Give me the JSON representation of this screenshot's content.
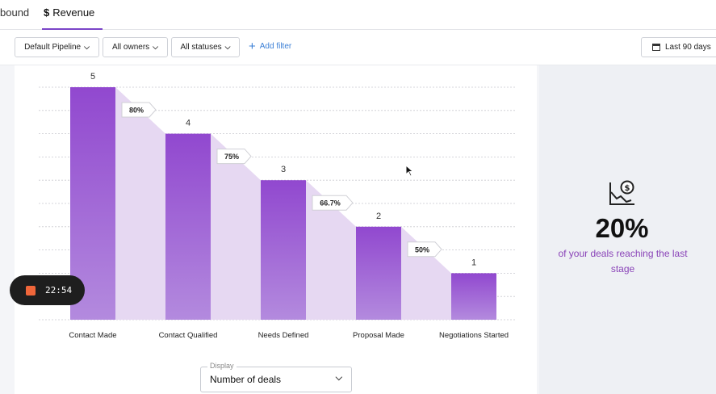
{
  "tabs": {
    "inbound": "bound",
    "revenue": "Revenue",
    "revenue_symbol": "$"
  },
  "filters": {
    "pipeline": "Default Pipeline",
    "owners": "All owners",
    "statuses": "All statuses",
    "add_filter": "Add filter",
    "date_range": "Last 90 days"
  },
  "chart_data": {
    "type": "bar",
    "categories": [
      "Contact Made",
      "Contact Qualified",
      "Needs Defined",
      "Proposal Made",
      "Negotiations Started"
    ],
    "values": [
      5,
      4,
      3,
      2,
      1
    ],
    "conversion_labels": [
      "80%",
      "75%",
      "66.7%",
      "50%"
    ],
    "ylim": [
      0,
      5
    ],
    "grid": true,
    "bar_color": "#9a5bd0"
  },
  "metric": {
    "value": "20%",
    "description": "of your deals reaching the last stage",
    "icon": "chart-dollar-icon",
    "color": "#8a44b8"
  },
  "display": {
    "legend": "Display",
    "value": "Number of deals"
  },
  "recorder": {
    "time": "22:54"
  }
}
